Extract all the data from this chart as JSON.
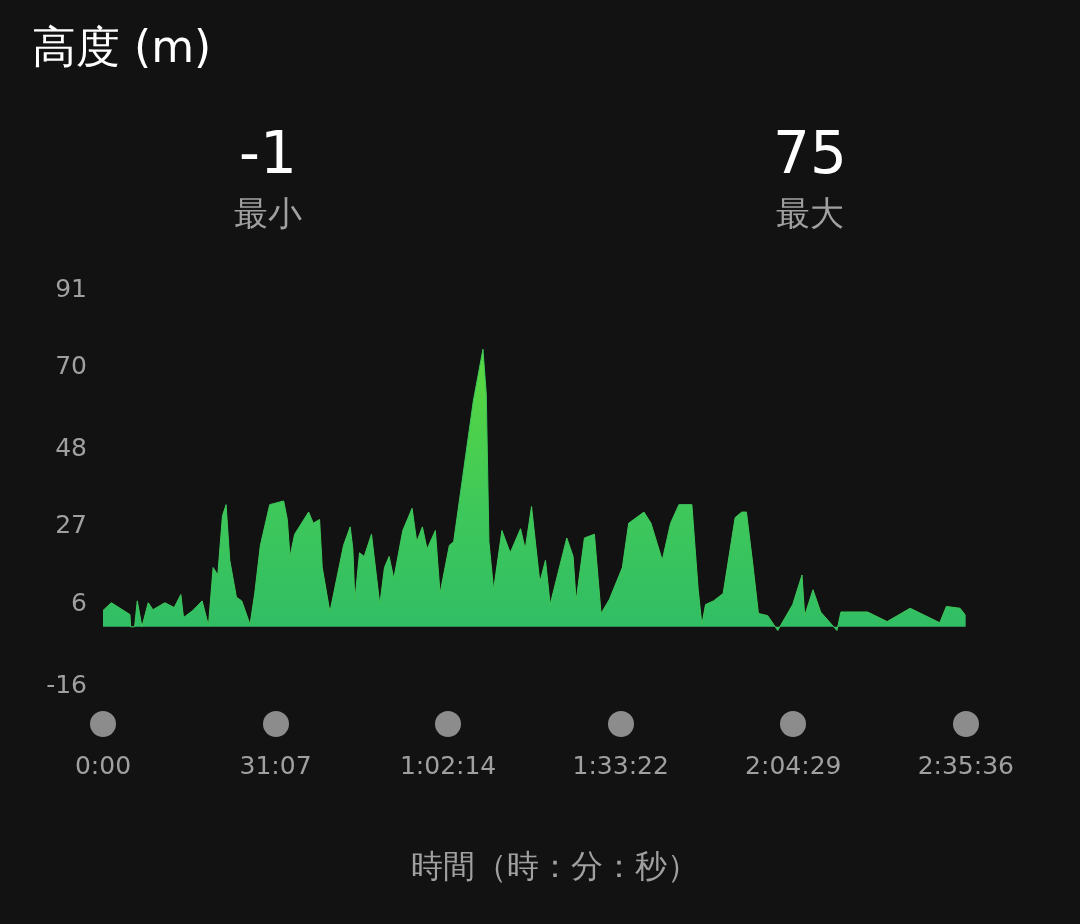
{
  "chart_data": {
    "type": "area",
    "title": "高度 (m)",
    "xlabel": "時間（時：分：秒）",
    "annotations": [
      "-1",
      "最小",
      "75",
      "最大"
    ],
    "xlim": [
      0,
      155.6
    ],
    "ylim": [
      -16,
      91
    ],
    "xticks": [
      {
        "value": 0,
        "label": "0:00"
      },
      {
        "value": 31.117,
        "label": "31:07"
      },
      {
        "value": 62.233,
        "label": "1:02:14"
      },
      {
        "value": 93.367,
        "label": "1:33:22"
      },
      {
        "value": 124.483,
        "label": "2:04:29"
      },
      {
        "value": 155.6,
        "label": "2:35:36"
      }
    ],
    "yticks": [
      -16,
      6,
      27,
      48,
      70,
      91
    ],
    "grid": false,
    "legend": false,
    "marker": "none",
    "series": [
      {
        "color": "#3ec85a",
        "x": [
          0,
          1.5,
          4.86,
          4.98,
          5.7,
          6.18,
          7.02,
          8.16,
          9,
          11.16,
          12.84,
          14.04,
          14.52,
          16.2,
          17.88,
          19.02,
          19.86,
          20.7,
          21.54,
          22.2,
          22.86,
          24.06,
          25.02,
          26.52,
          27.36,
          28.38,
          30.06,
          32.58,
          33.24,
          33.72,
          34.56,
          37.08,
          37.92,
          39.06,
          39.54,
          40.92,
          43.38,
          44.58,
          45.06,
          45.42,
          46.26,
          47.1,
          48.42,
          49.92,
          50.76,
          51.6,
          52.44,
          54.06,
          55.74,
          56.58,
          57.6,
          58.44,
          59.94,
          60.78,
          62.46,
          63.24,
          65.1,
          66.78,
          68.52,
          69.12,
          69.6,
          70.44,
          71.94,
          73.44,
          75.3,
          76.14,
          77.28,
          78.78,
          79.8,
          80.64,
          83.64,
          84.78,
          85.32,
          86.82,
          88.62,
          89.82,
          91.32,
          93.66,
          94.8,
          97.56,
          98.82,
          100.86,
          102.36,
          103.86,
          106.2,
          107.34,
          108,
          108.66,
          110.1,
          111.84,
          114,
          115.2,
          116.04,
          117.18,
          118.2,
          119.88,
          121.68,
          124.38,
          126.06,
          126.54,
          128.04,
          129.42,
          132.36,
          133.08,
          137.88,
          141.42,
          145.56,
          150.9,
          152.1,
          154.56,
          155.6
        ],
        "values": [
          4.4,
          6.5,
          3.3,
          0,
          0,
          7,
          0,
          6.5,
          4.6,
          6.5,
          5.2,
          8.7,
          2.5,
          4.4,
          7,
          0.3,
          16,
          14,
          30,
          33,
          18,
          8,
          7,
          0.6,
          9,
          22,
          33,
          34,
          29,
          19,
          25,
          31,
          28,
          29,
          16,
          4,
          22,
          27,
          21,
          7,
          20,
          19,
          25,
          6,
          16,
          19,
          13,
          26,
          32,
          23,
          27,
          21,
          26,
          9,
          22,
          23,
          43,
          61,
          75,
          63,
          23,
          10,
          26,
          20,
          26.5,
          21,
          32.5,
          12,
          18,
          6,
          24,
          19,
          7,
          24,
          25,
          3.6,
          7.4,
          16,
          28,
          31,
          28,
          18,
          28,
          33,
          33,
          10,
          0.6,
          6,
          7,
          9,
          29.5,
          31,
          31,
          17,
          3.6,
          3,
          -1,
          6,
          14,
          3,
          10,
          4,
          -1,
          4,
          4,
          1.4,
          5,
          1.1,
          5.5,
          5,
          3
        ]
      }
    ]
  }
}
